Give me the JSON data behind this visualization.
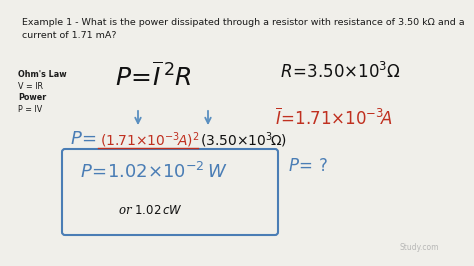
{
  "bg_color": "#f0efea",
  "title_text": "Example 1 - What is the power dissipated through a resistor with resistance of 3.50 kΩ and a\ncurrent of 1.71 mA?",
  "title_color": "#1a1a1a",
  "title_fontsize": 6.8,
  "ohms_lines": [
    "Ohm's Law",
    "V = IR",
    "Power",
    "P = IV"
  ],
  "ohms_bold": [
    true,
    false,
    true,
    false
  ],
  "ohms_fontsize": 5.8,
  "formula_color": "#111111",
  "arrow_color": "#5a8fc0",
  "sub_P_color": "#4a7db5",
  "sub_I_color": "#c03020",
  "sub_R_color": "#111111",
  "box_color": "#4a7db5",
  "right_R_color": "#111111",
  "right_I_color": "#c03020",
  "right_P_color": "#4a7db5",
  "watermark_color": "#aaaaaa"
}
